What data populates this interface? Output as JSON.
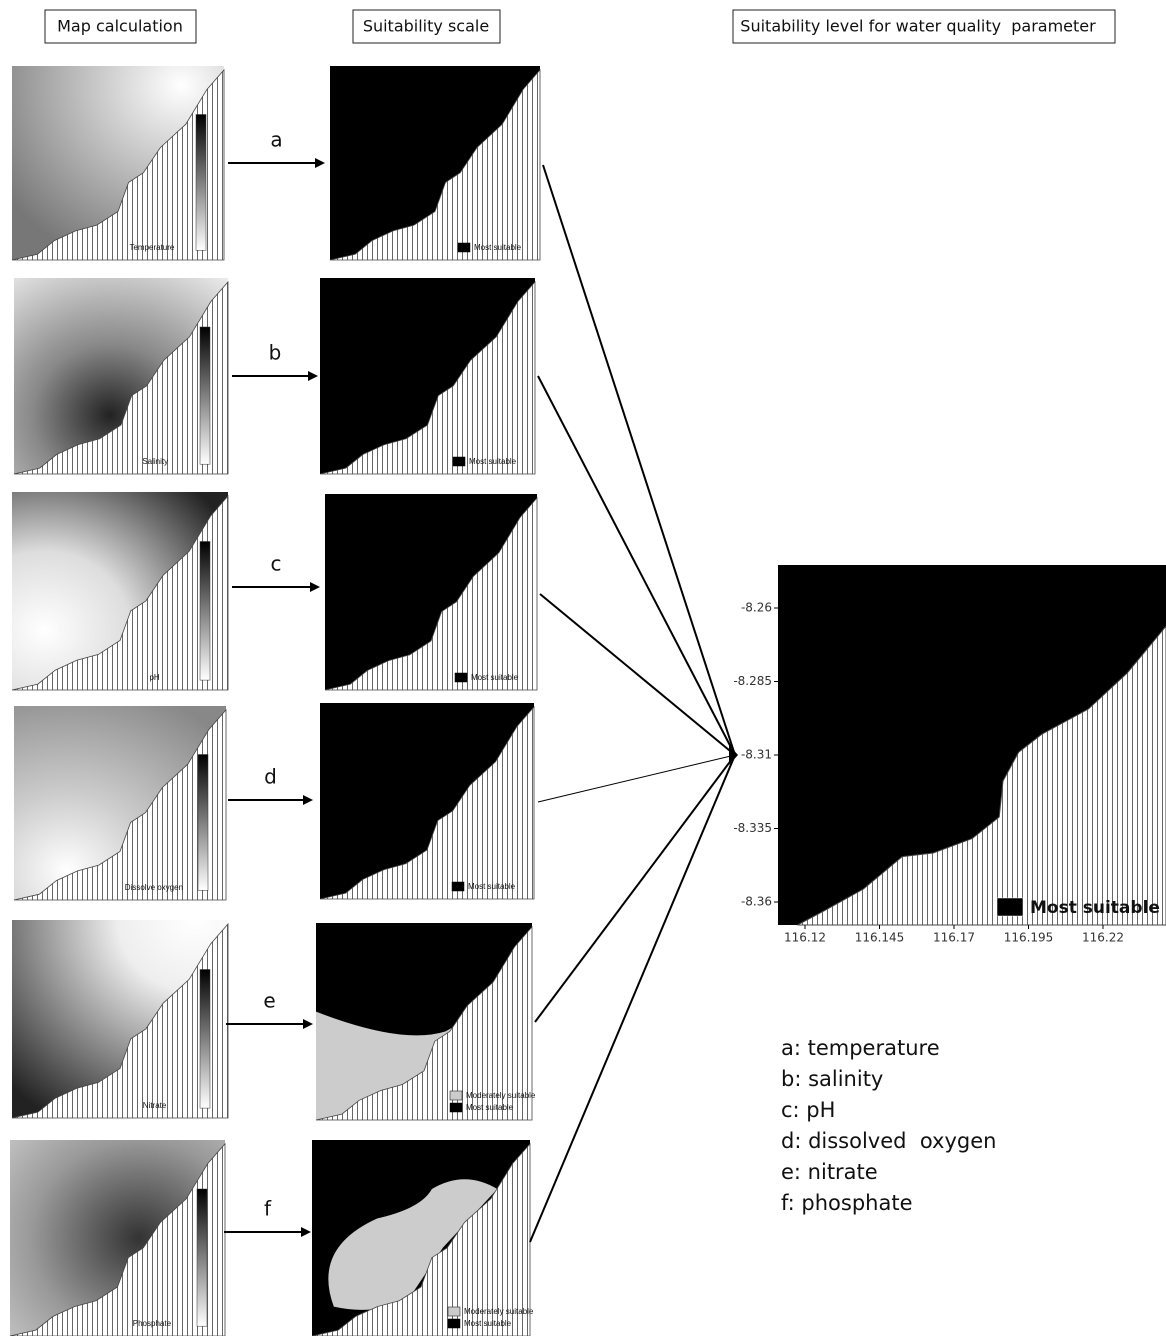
{
  "headers": {
    "map_calculation": "Map calculation",
    "suitability_scale": "Suitability scale",
    "suitability_level": "Suitability level for water quality  parameter"
  },
  "rows": [
    {
      "letter": "a",
      "map_label": "Temperature",
      "legend": [
        "Most suitable"
      ]
    },
    {
      "letter": "b",
      "map_label": "Salinity",
      "legend": [
        "Most suitable"
      ]
    },
    {
      "letter": "c",
      "map_label": "pH",
      "legend": [
        "Most suitable"
      ]
    },
    {
      "letter": "d",
      "map_label": "Dissolve oxygen",
      "legend": [
        "Most suitable"
      ]
    },
    {
      "letter": "e",
      "map_label": "Nitrate",
      "legend": [
        "Moderately suitable",
        "Most suitable"
      ]
    },
    {
      "letter": "f",
      "map_label": "Phosphate",
      "legend": [
        "Moderately suitable",
        "Most suitable"
      ]
    }
  ],
  "result": {
    "yticks": [
      "-8.26",
      "-8.285",
      "-8.31",
      "-8.335",
      "-8.36"
    ],
    "xticks": [
      "116.12",
      "116.145",
      "116.17",
      "116.195",
      "116.22"
    ],
    "legend": "Most suitable"
  },
  "key": [
    "a: temperature",
    "b: salinity",
    "c: pH",
    "d: dissolved  oxygen",
    "e: nitrate",
    "f: phosphate"
  ]
}
